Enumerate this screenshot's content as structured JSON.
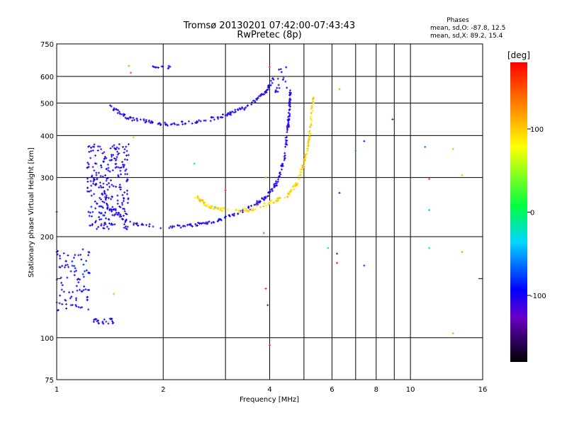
{
  "chart_data": {
    "type": "scatter",
    "title": "Tromsø 20130201 07:42:00-07:43:43",
    "subtitle": "RwPretec (8p)",
    "xlabel": "Frequency [MHz]",
    "ylabel": "Stationary phase Virtual Height [km]",
    "x_scale": "log",
    "y_scale": "log",
    "xlim": [
      1,
      16
    ],
    "ylim": [
      75,
      750
    ],
    "x_ticks": [
      1,
      2,
      4,
      6,
      8,
      10,
      16
    ],
    "x_minor_ticks": [
      3,
      5,
      7,
      9
    ],
    "y_ticks": [
      75,
      100,
      200,
      300,
      400,
      500,
      600,
      750
    ],
    "y_minor_ticks": [
      150
    ],
    "grid": true,
    "info": {
      "heading": "Phases",
      "line1": "mean, sd,O: -87.8, 12.5",
      "line2": "mean, sd,X:  89.2, 15.4"
    },
    "colorbar": {
      "label": "[deg]",
      "range": [
        -180,
        180
      ],
      "ticks": [
        100,
        0,
        -100
      ]
    },
    "clusters": [
      {
        "type": "band",
        "x": [
          1.0,
          1.25
        ],
        "y": [
          120,
          185
        ],
        "phase": -95,
        "n": 90,
        "spread": 0.09
      },
      {
        "type": "band",
        "x": [
          1.22,
          1.6
        ],
        "y": [
          210,
          380
        ],
        "phase": -100,
        "n": 260,
        "spread": 0.12
      },
      {
        "type": "band",
        "x": [
          1.27,
          1.45
        ],
        "y": [
          110,
          114
        ],
        "phase": -105,
        "n": 22,
        "spread": 0.01
      },
      {
        "type": "curve",
        "pts": [
          [
            1.38,
            250
          ],
          [
            1.6,
            220
          ],
          [
            2.0,
            213
          ],
          [
            2.5,
            217
          ],
          [
            3.0,
            227
          ],
          [
            3.5,
            243
          ],
          [
            3.9,
            262
          ],
          [
            4.2,
            290
          ],
          [
            4.4,
            340
          ],
          [
            4.5,
            420
          ],
          [
            4.55,
            480
          ],
          [
            4.58,
            560
          ]
        ],
        "phase": -105,
        "n": 220,
        "spread": 0.012
      },
      {
        "type": "curve",
        "pts": [
          [
            1.4,
            490
          ],
          [
            1.6,
            450
          ],
          [
            2.0,
            433
          ],
          [
            2.5,
            438
          ],
          [
            3.0,
            460
          ],
          [
            3.5,
            490
          ],
          [
            3.9,
            540
          ],
          [
            4.1,
            590
          ]
        ],
        "phase": -100,
        "n": 150,
        "spread": 0.012
      },
      {
        "type": "curve",
        "pts": [
          [
            2.45,
            265
          ],
          [
            2.7,
            245
          ],
          [
            3.0,
            240
          ],
          [
            3.5,
            240
          ],
          [
            4.0,
            252
          ],
          [
            4.5,
            265
          ],
          [
            4.8,
            290
          ],
          [
            5.0,
            330
          ],
          [
            5.15,
            380
          ],
          [
            5.25,
            450
          ],
          [
            5.3,
            520
          ]
        ],
        "phase": 95,
        "n": 180,
        "spread": 0.012
      },
      {
        "type": "band",
        "x": [
          1.85,
          2.1
        ],
        "y": [
          630,
          645
        ],
        "phase": -100,
        "n": 12,
        "spread": 0.01
      },
      {
        "type": "band",
        "x": [
          4.05,
          4.5
        ],
        "y": [
          535,
          640
        ],
        "phase": -105,
        "n": 16,
        "spread": 0.04
      }
    ],
    "points": [
      {
        "x": 1.6,
        "y": 645,
        "phase": 120
      },
      {
        "x": 1.62,
        "y": 615,
        "phase": 150
      },
      {
        "x": 1.0,
        "y": 237,
        "phase": -110
      },
      {
        "x": 1.0,
        "y": 180,
        "phase": -100
      },
      {
        "x": 1.45,
        "y": 135,
        "phase": 110
      },
      {
        "x": 3.05,
        "y": 463,
        "phase": -120
      },
      {
        "x": 3.9,
        "y": 300,
        "phase": 130
      },
      {
        "x": 3.85,
        "y": 205,
        "phase": 150
      },
      {
        "x": 3.95,
        "y": 125,
        "phase": -130
      },
      {
        "x": 3.9,
        "y": 140,
        "phase": 170
      },
      {
        "x": 4.0,
        "y": 95,
        "phase": 170
      },
      {
        "x": 4.0,
        "y": 640,
        "phase": 170
      },
      {
        "x": 6.3,
        "y": 550,
        "phase": 120
      },
      {
        "x": 8.9,
        "y": 447,
        "phase": -130
      },
      {
        "x": 6.3,
        "y": 270,
        "phase": -100
      },
      {
        "x": 6.2,
        "y": 178,
        "phase": -120
      },
      {
        "x": 6.2,
        "y": 167,
        "phase": 170
      },
      {
        "x": 7.0,
        "y": 360,
        "phase": -60
      },
      {
        "x": 7.4,
        "y": 385,
        "phase": -90
      },
      {
        "x": 7.4,
        "y": 164,
        "phase": -80
      },
      {
        "x": 5.85,
        "y": 185,
        "phase": -40
      },
      {
        "x": 11.0,
        "y": 370,
        "phase": -60
      },
      {
        "x": 11.3,
        "y": 297,
        "phase": 160
      },
      {
        "x": 11.3,
        "y": 240,
        "phase": -40
      },
      {
        "x": 11.3,
        "y": 185,
        "phase": -30
      },
      {
        "x": 13.2,
        "y": 365,
        "phase": 110
      },
      {
        "x": 14.0,
        "y": 305,
        "phase": 110
      },
      {
        "x": 14.0,
        "y": 180,
        "phase": 120
      },
      {
        "x": 13.2,
        "y": 103,
        "phase": 120
      },
      {
        "x": 2.45,
        "y": 330,
        "phase": -40
      },
      {
        "x": 3.0,
        "y": 275,
        "phase": 170
      },
      {
        "x": 1.65,
        "y": 395,
        "phase": 100
      },
      {
        "x": 2.8,
        "y": 245,
        "phase": -30
      }
    ]
  }
}
